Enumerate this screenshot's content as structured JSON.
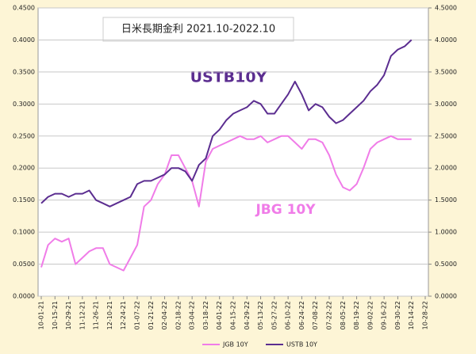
{
  "chart_data": {
    "type": "line",
    "title": "日米長期金利 2021.10-2022.10",
    "annotations": [
      "USTB10Y",
      "JBG 10Y"
    ],
    "categories": [
      "10-01-21",
      null,
      "10-15-21",
      null,
      "10-29-21",
      null,
      "11-12-21",
      null,
      "11-26-21",
      null,
      "12-10-21",
      null,
      "12-24-21",
      null,
      "01-07-22",
      null,
      "01-21-22",
      null,
      "02-04-22",
      null,
      "02-18-22",
      null,
      "03-04-22",
      null,
      "03-18-22",
      null,
      "04-01-22",
      null,
      "04-15-22",
      null,
      "04-29-22",
      null,
      "05-13-22",
      null,
      "05-27-22",
      null,
      "06-10-22",
      null,
      "06-24-22",
      null,
      "07-08-22",
      null,
      "07-22-22",
      null,
      "08-05-22",
      null,
      "08-19-22",
      null,
      "09-02-22",
      null,
      "09-16-22",
      null,
      "09-30-22",
      null,
      "10-14-22",
      null,
      "10-28-22"
    ],
    "series": [
      {
        "name": "JGB 10Y",
        "color": "#f07ce8",
        "values": [
          0.045,
          0.08,
          0.09,
          0.085,
          0.09,
          0.05,
          0.06,
          0.07,
          0.075,
          0.075,
          0.05,
          0.045,
          0.04,
          0.06,
          0.08,
          0.14,
          0.15,
          0.175,
          0.19,
          0.22,
          0.22,
          0.2,
          0.18,
          0.14,
          0.21,
          0.23,
          0.235,
          0.24,
          0.245,
          0.25,
          0.245,
          0.245,
          0.25,
          0.24,
          0.245,
          0.25,
          0.25,
          0.24,
          0.23,
          0.245,
          0.245,
          0.24,
          0.22,
          0.19,
          0.17,
          0.165,
          0.175,
          0.2,
          0.23,
          0.24,
          0.245,
          0.25,
          0.245,
          0.245,
          0.245,
          null,
          null
        ]
      },
      {
        "name": "USTB 10Y",
        "color": "#5b2d90",
        "axis": "y2",
        "values": [
          1.45,
          1.55,
          1.6,
          1.6,
          1.55,
          1.6,
          1.6,
          1.65,
          1.5,
          1.45,
          1.4,
          1.45,
          1.5,
          1.55,
          1.75,
          1.8,
          1.8,
          1.85,
          1.9,
          2.0,
          2.0,
          1.95,
          1.8,
          2.05,
          2.15,
          2.5,
          2.6,
          2.75,
          2.85,
          2.9,
          2.95,
          3.05,
          3.0,
          2.85,
          2.85,
          3.0,
          3.15,
          3.35,
          3.15,
          2.9,
          3.0,
          2.95,
          2.8,
          2.7,
          2.75,
          2.85,
          2.95,
          3.05,
          3.2,
          3.3,
          3.45,
          3.75,
          3.85,
          3.9,
          4.0,
          null,
          null
        ]
      }
    ],
    "ylim": [
      0,
      0.45
    ],
    "yticks": [
      {
        "value": 0,
        "label": "0.0000"
      },
      {
        "value": 0.05,
        "label": "0.0500"
      },
      {
        "value": 0.1,
        "label": "0.1000"
      },
      {
        "value": 0.15,
        "label": "0.1500"
      },
      {
        "value": 0.2,
        "label": "0.2000"
      },
      {
        "value": 0.25,
        "label": "0.2500"
      },
      {
        "value": 0.3,
        "label": "0.3000"
      },
      {
        "value": 0.35,
        "label": "0.3500"
      },
      {
        "value": 0.4,
        "label": "0.4000"
      },
      {
        "value": 0.45,
        "label": "0.4500"
      }
    ],
    "y2lim": [
      0,
      4.5
    ],
    "y2ticks": [
      {
        "value": 0,
        "label": "0.0000"
      },
      {
        "value": 0.5,
        "label": "0.5000"
      },
      {
        "value": 1,
        "label": "1.0000"
      },
      {
        "value": 1.5,
        "label": "1.5000"
      },
      {
        "value": 2,
        "label": "2.0000"
      },
      {
        "value": 2.5,
        "label": "2.5000"
      },
      {
        "value": 3,
        "label": "3.0000"
      },
      {
        "value": 3.5,
        "label": "3.5000"
      },
      {
        "value": 4,
        "label": "4.0000"
      },
      {
        "value": 4.5,
        "label": "4.5000"
      }
    ],
    "grid": true,
    "legend": "bottom"
  }
}
